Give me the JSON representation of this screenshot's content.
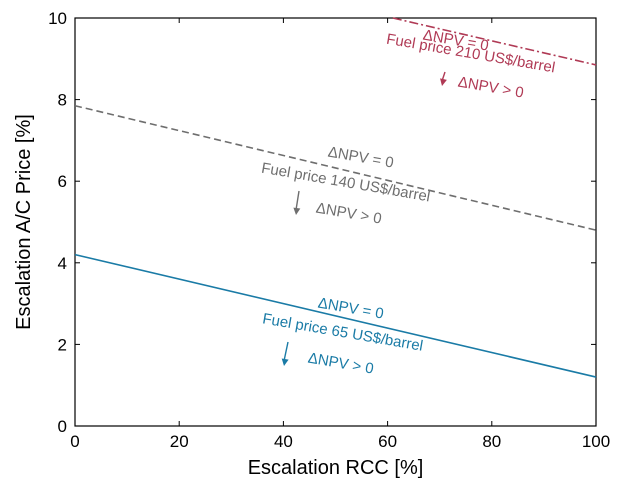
{
  "chart_data": {
    "type": "line",
    "xlabel": "Escalation RCC [%]",
    "ylabel": "Escalation A/C Price [%]",
    "xlim": [
      0,
      100
    ],
    "ylim": [
      0,
      10
    ],
    "xticks": [
      "0",
      "20",
      "40",
      "60",
      "80",
      "100"
    ],
    "yticks": [
      "0",
      "2",
      "4",
      "6",
      "8",
      "10"
    ],
    "grid": false,
    "series": [
      {
        "name": "Fuel price 65 US$/barrel",
        "x": [
          0,
          100
        ],
        "y": [
          4.2,
          1.2
        ],
        "color": "#1a7ba6",
        "style": "solid",
        "annotation_top": "ΔNPV = 0",
        "annotation_bottom": "ΔNPV > 0"
      },
      {
        "name": "Fuel price 140 US$/barrel",
        "x": [
          0,
          100
        ],
        "y": [
          7.85,
          4.8
        ],
        "color": "#6e6e6e",
        "style": "dashed",
        "annotation_top": "ΔNPV = 0",
        "annotation_bottom": "ΔNPV > 0"
      },
      {
        "name": "Fuel price 210 US$/barrel",
        "x": [
          61,
          100
        ],
        "y": [
          10,
          8.85
        ],
        "color": "#b03a55",
        "style": "dashdot",
        "annotation_top": "ΔNPV = 0",
        "annotation_bottom": "ΔNPV > 0"
      }
    ]
  }
}
